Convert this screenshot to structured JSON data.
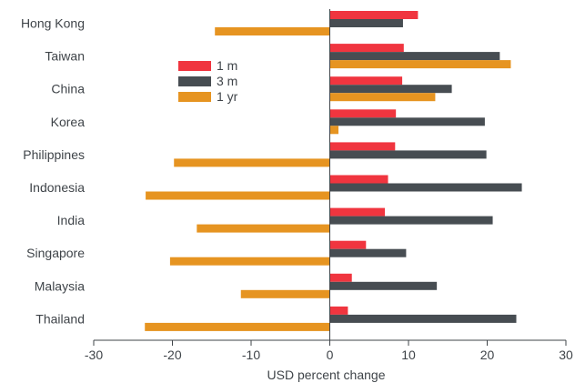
{
  "chart_data": {
    "type": "bar",
    "orientation": "horizontal",
    "categories": [
      "Hong Kong",
      "Taiwan",
      "China",
      "Korea",
      "Philippines",
      "Indonesia",
      "India",
      "Singapore",
      "Malaysia",
      "Thailand"
    ],
    "series": [
      {
        "name": "1 m",
        "color": "#f0353f",
        "values": [
          11.2,
          9.4,
          9.2,
          8.4,
          8.3,
          7.4,
          7.0,
          4.6,
          2.8,
          2.3
        ]
      },
      {
        "name": "3 m",
        "color": "#474d52",
        "values": [
          9.3,
          21.6,
          15.5,
          19.7,
          19.9,
          24.4,
          20.7,
          9.7,
          13.6,
          23.7
        ]
      },
      {
        "name": "1 yr",
        "color": "#e69421",
        "values": [
          -14.6,
          23.0,
          13.4,
          1.1,
          -19.8,
          -23.4,
          -16.9,
          -20.3,
          -11.3,
          -23.5
        ]
      }
    ],
    "xlabel": "USD percent change",
    "xlim": [
      -30,
      30
    ],
    "xticks": [
      -30,
      -20,
      -10,
      0,
      10,
      20,
      30
    ],
    "grid": false,
    "legend_position": "upper-left"
  }
}
